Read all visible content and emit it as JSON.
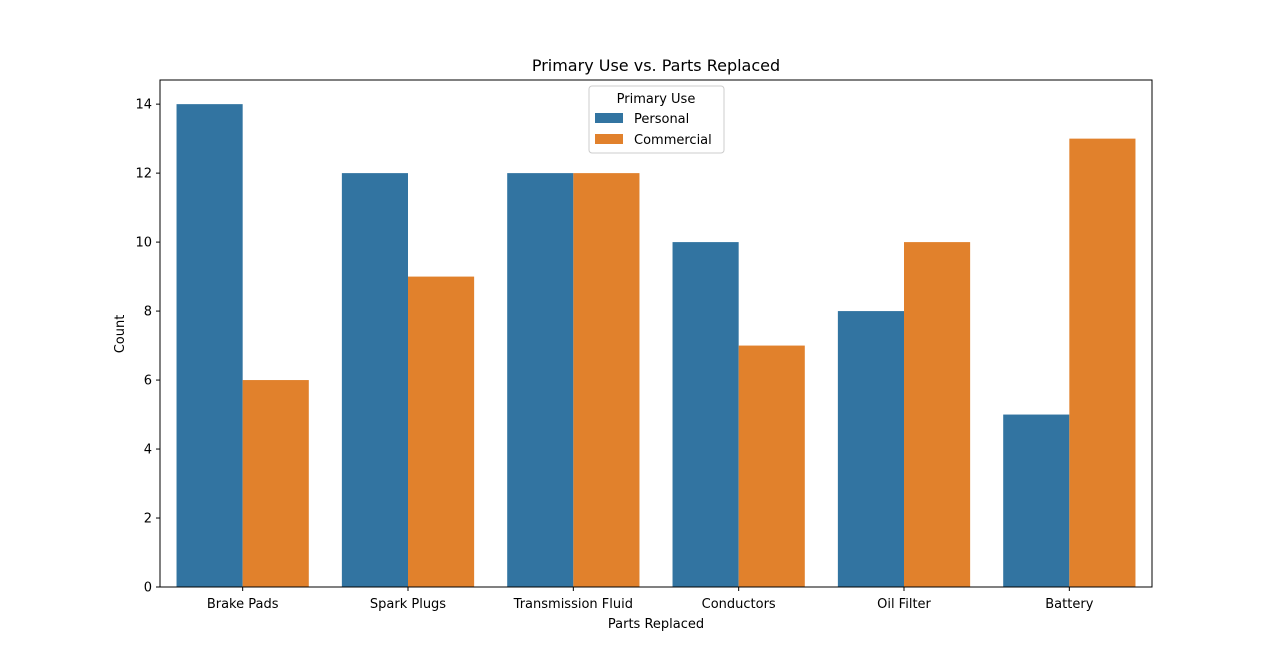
{
  "chart_data": {
    "type": "bar",
    "title": "Primary Use vs. Parts Replaced",
    "xlabel": "Parts Replaced",
    "ylabel": "Count",
    "categories": [
      "Brake Pads",
      "Spark Plugs",
      "Transmission Fluid",
      "Conductors",
      "Oil Filter",
      "Battery"
    ],
    "series": [
      {
        "name": "Personal",
        "color": "#3274a1",
        "values": [
          14,
          12,
          12,
          10,
          8,
          5
        ]
      },
      {
        "name": "Commercial",
        "color": "#e1812c",
        "values": [
          6,
          9,
          12,
          7,
          10,
          13
        ]
      }
    ],
    "ylim": [
      0,
      14.7
    ],
    "yticks": [
      "0",
      "2",
      "4",
      "6",
      "8",
      "10",
      "12",
      "14"
    ],
    "grid": false,
    "legend": {
      "title": "Primary Use",
      "placement": "top-center"
    }
  }
}
